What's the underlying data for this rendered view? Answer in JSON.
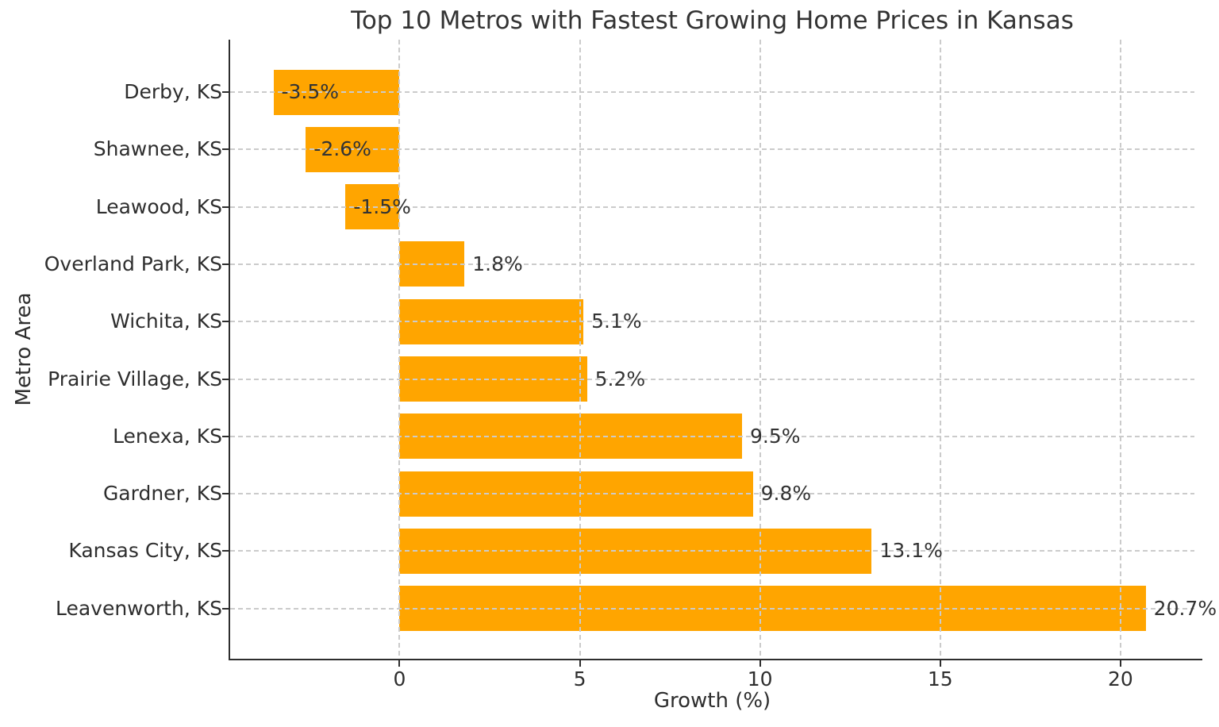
{
  "chart_data": {
    "type": "bar",
    "orientation": "horizontal",
    "title": "Top 10 Metros with Fastest Growing Home Prices in Kansas",
    "xlabel": "Growth (%)",
    "ylabel": "Metro Area",
    "categories": [
      "Derby, KS",
      "Shawnee, KS",
      "Leawood, KS",
      "Overland Park, KS",
      "Wichita, KS",
      "Prairie Village, KS",
      "Lenexa, KS",
      "Gardner, KS",
      "Kansas City, KS",
      "Leavenworth, KS"
    ],
    "values": [
      -3.5,
      -2.6,
      -1.5,
      1.8,
      5.1,
      5.2,
      9.5,
      9.8,
      13.1,
      20.7
    ],
    "value_labels": [
      "-3.5%",
      "-2.6%",
      "-1.5%",
      "1.8%",
      "5.1%",
      "5.2%",
      "9.5%",
      "9.8%",
      "13.1%",
      "20.7%"
    ],
    "x_ticks": [
      0,
      5,
      10,
      15,
      20
    ],
    "xlim": [
      -4.7,
      22.05
    ],
    "bar_color": "#FFA500",
    "grid": true,
    "grid_style": "dashed",
    "grid_above_bars": true,
    "legend": false
  }
}
